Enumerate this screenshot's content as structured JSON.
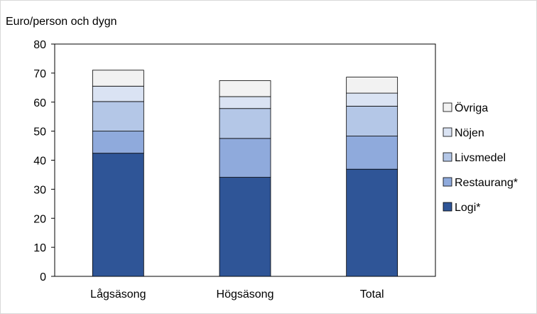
{
  "chart_data": {
    "type": "bar",
    "stacked": true,
    "ylabel": "Euro/person och dygn",
    "xlabel": "",
    "ylim": [
      0,
      80
    ],
    "yticks": [
      0,
      10,
      20,
      30,
      40,
      50,
      60,
      70,
      80
    ],
    "grid": false,
    "legend_position": "right",
    "categories": [
      "Lågsäsong",
      "Högsäsong",
      "Total"
    ],
    "series": [
      {
        "name": "Logi*",
        "values": [
          42.4,
          34.1,
          36.9
        ],
        "color": "#2f5597"
      },
      {
        "name": "Restaurang*",
        "values": [
          7.6,
          13.4,
          11.4
        ],
        "color": "#8faadc"
      },
      {
        "name": "Livsmedel",
        "values": [
          10.2,
          10.3,
          10.3
        ],
        "color": "#b4c7e7"
      },
      {
        "name": "Nöjen",
        "values": [
          5.3,
          4.1,
          4.5
        ],
        "color": "#dae3f3"
      },
      {
        "name": "Övriga",
        "values": [
          5.5,
          5.5,
          5.5
        ],
        "color": "#f2f2f2"
      }
    ]
  }
}
